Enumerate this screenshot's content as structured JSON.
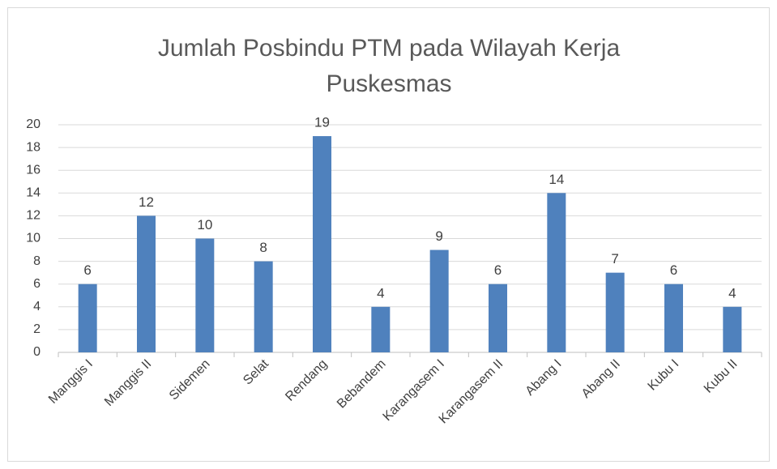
{
  "chart_data": {
    "type": "bar",
    "title": "Jumlah Posbindu PTM pada Wilayah Kerja Puskesmas",
    "categories": [
      "Manggis I",
      "Manggis II",
      "Sidemen",
      "Selat",
      "Rendang",
      "Bebandem",
      "Karangasem I",
      "Karangasem II",
      "Abang I",
      "Abang II",
      "Kubu I",
      "Kubu II"
    ],
    "values": [
      6,
      12,
      10,
      8,
      19,
      4,
      9,
      6,
      14,
      7,
      6,
      4
    ],
    "color": "#4f81bd",
    "ylim": [
      0,
      20
    ],
    "yticks": [
      0,
      2,
      4,
      6,
      8,
      10,
      12,
      14,
      16,
      18,
      20
    ],
    "grid": true
  }
}
